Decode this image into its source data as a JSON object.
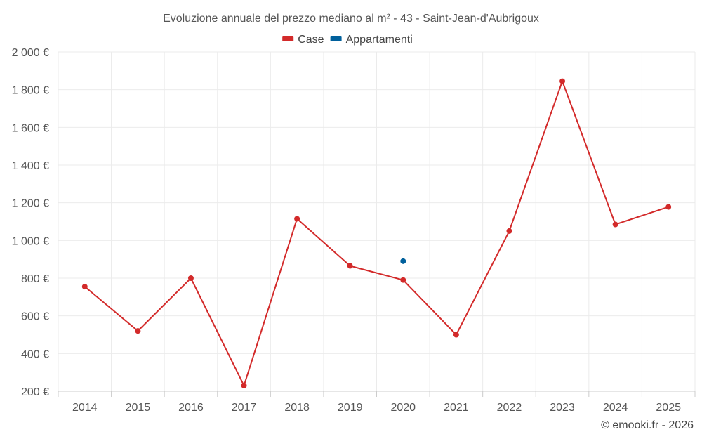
{
  "chart_data": {
    "type": "line",
    "title": "Evoluzione annuale del prezzo mediano al m² - 43 - Saint-Jean-d'Aubrigoux",
    "categories": [
      "2014",
      "2015",
      "2016",
      "2017",
      "2018",
      "2019",
      "2020",
      "2021",
      "2022",
      "2023",
      "2024",
      "2025"
    ],
    "series": [
      {
        "name": "Case",
        "color": "#d32a2a",
        "values": [
          755,
          520,
          800,
          230,
          1115,
          865,
          790,
          500,
          1050,
          1845,
          1085,
          1178
        ]
      },
      {
        "name": "Appartamenti",
        "color": "#00609c",
        "values": [
          null,
          null,
          null,
          null,
          null,
          null,
          890,
          null,
          null,
          null,
          null,
          null
        ]
      }
    ],
    "ylim": [
      200,
      2000
    ],
    "yticks": [
      200,
      400,
      600,
      800,
      1000,
      1200,
      1400,
      1600,
      1800,
      2000
    ],
    "ytick_labels": [
      "200 €",
      "400 €",
      "600 €",
      "800 €",
      "1 000 €",
      "1 200 €",
      "1 400 €",
      "1 600 €",
      "1 800 €",
      "2 000 €"
    ],
    "xlabel": "",
    "ylabel": "",
    "grid": true,
    "legend_position": "top-center"
  },
  "credit": "© emooki.fr - 2026"
}
